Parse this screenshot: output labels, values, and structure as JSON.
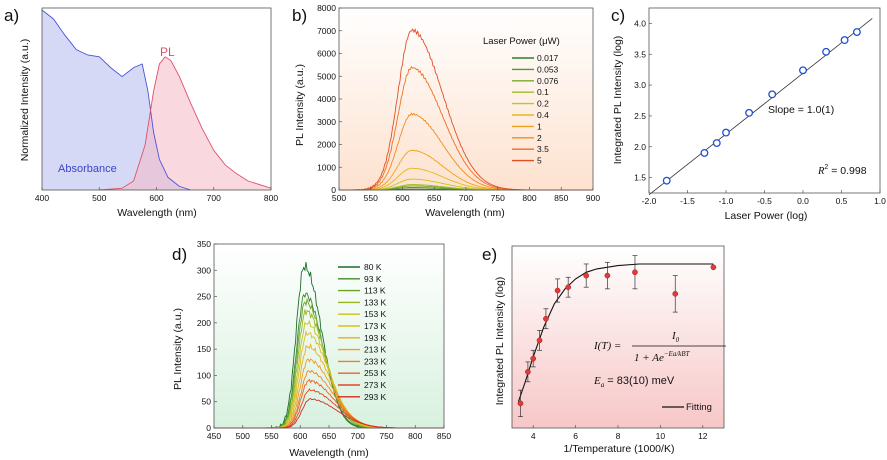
{
  "colors": {
    "absorbance": "#4a55d8",
    "pl_a": "#e0506a",
    "panel_b_series": [
      "#2e7d32",
      "#4f9a2f",
      "#78a82a",
      "#9fbc24",
      "#c8c31e",
      "#e3b81f",
      "#f0a21f",
      "#f38a22",
      "#ef6e26",
      "#e24e28"
    ],
    "panel_d_series": [
      "#1b6e2a",
      "#3d8b2a",
      "#6aa326",
      "#98b620",
      "#c5c21c",
      "#dcbd1e",
      "#ecae1f",
      "#f39a21",
      "#f18023",
      "#e96326",
      "#de4628",
      "#d42a2a"
    ],
    "marker_c": "#1f4fd6",
    "marker_e": "#e23a3a"
  },
  "chart_data": [
    {
      "panel": "a)",
      "type": "area",
      "xlabel": "Wavelength (nm)",
      "ylabel": "Normalized Intensity (a.u.)",
      "xlim": [
        400,
        800
      ],
      "xticks": [
        "400",
        "500",
        "600",
        "700",
        "800"
      ],
      "series": [
        {
          "name": "Absorbance",
          "x": [
            400,
            420,
            440,
            460,
            480,
            500,
            520,
            540,
            560,
            575,
            585,
            595,
            605,
            620,
            640,
            660
          ],
          "y": [
            1.0,
            0.95,
            0.86,
            0.78,
            0.75,
            0.74,
            0.68,
            0.63,
            0.68,
            0.7,
            0.55,
            0.32,
            0.17,
            0.07,
            0.02,
            0.0
          ]
        },
        {
          "name": "PL",
          "x": [
            500,
            540,
            560,
            580,
            595,
            605,
            615,
            625,
            640,
            660,
            680,
            700,
            720,
            740,
            760,
            780,
            800
          ],
          "y": [
            0.0,
            0.01,
            0.05,
            0.25,
            0.55,
            0.7,
            0.74,
            0.72,
            0.63,
            0.48,
            0.34,
            0.22,
            0.14,
            0.09,
            0.05,
            0.03,
            0.01
          ]
        }
      ]
    },
    {
      "panel": "b)",
      "type": "line",
      "xlabel": "Wavelength (nm)",
      "ylabel": "PL Intensity (a.u.)",
      "xlim": [
        500,
        900
      ],
      "ylim": [
        0,
        8000
      ],
      "xticks": [
        "500",
        "550",
        "600",
        "650",
        "700",
        "750",
        "800",
        "850",
        "900"
      ],
      "yticks": [
        "0",
        "1000",
        "2000",
        "3000",
        "4000",
        "5000",
        "6000",
        "7000",
        "8000"
      ],
      "legend_title": "Laser Power (μW)",
      "peak_nm": 615,
      "series": [
        {
          "name": "0.017",
          "peak": 40
        },
        {
          "name": "0.053",
          "peak": 110
        },
        {
          "name": "0.076",
          "peak": 180
        },
        {
          "name": "0.1",
          "peak": 240
        },
        {
          "name": "0.2",
          "peak": 480
        },
        {
          "name": "0.4",
          "peak": 960
        },
        {
          "name": "1",
          "peak": 1750
        },
        {
          "name": "2",
          "peak": 3350
        },
        {
          "name": "3.5",
          "peak": 5400
        },
        {
          "name": "5",
          "peak": 7050
        }
      ]
    },
    {
      "panel": "c)",
      "type": "scatter",
      "xlabel": "Laser Power (log)",
      "ylabel": "Integrated PL Intensity (log)",
      "xlim": [
        -2.0,
        1.0
      ],
      "ylim": [
        1.25,
        4.25
      ],
      "xticks": [
        "-2.0",
        "-1.5",
        "-1.0",
        "-0.5",
        "0.0",
        "0.5",
        "1.0"
      ],
      "yticks": [
        "1.5",
        "2.0",
        "2.5",
        "3.0",
        "3.5",
        "4.0"
      ],
      "x": [
        -1.77,
        -1.28,
        -1.12,
        -1.0,
        -0.7,
        -0.4,
        0.0,
        0.3,
        0.54,
        0.7
      ],
      "y": [
        1.45,
        1.9,
        2.06,
        2.23,
        2.55,
        2.85,
        3.24,
        3.54,
        3.73,
        3.86
      ],
      "fit": {
        "x": [
          -2.0,
          0.9
        ],
        "y": [
          1.22,
          4.08
        ]
      },
      "annotations": {
        "slope": "Slope = 1.0(1)",
        "r2_lhs": "R",
        "r2_sup": "2",
        "r2_rhs": " = 0.998"
      }
    },
    {
      "panel": "d)",
      "type": "line",
      "xlabel": "Wavelength (nm)",
      "ylabel": "PL Intensity (a.u.)",
      "xlim": [
        450,
        850
      ],
      "ylim": [
        0,
        350
      ],
      "xticks": [
        "450",
        "500",
        "550",
        "600",
        "650",
        "700",
        "750",
        "800",
        "850"
      ],
      "yticks": [
        "0",
        "50",
        "100",
        "150",
        "200",
        "250",
        "300",
        "350"
      ],
      "series": [
        {
          "name": "80 K",
          "peak": 307,
          "center": 607
        },
        {
          "name": "93 K",
          "peak": 255,
          "center": 608
        },
        {
          "name": "113 K",
          "peak": 240,
          "center": 609
        },
        {
          "name": "133 K",
          "peak": 222,
          "center": 610
        },
        {
          "name": "153 K",
          "peak": 200,
          "center": 611
        },
        {
          "name": "173 K",
          "peak": 180,
          "center": 612
        },
        {
          "name": "193 K",
          "peak": 155,
          "center": 613
        },
        {
          "name": "213 K",
          "peak": 130,
          "center": 614
        },
        {
          "name": "233 K",
          "peak": 108,
          "center": 615
        },
        {
          "name": "253 K",
          "peak": 90,
          "center": 615
        },
        {
          "name": "273 K",
          "peak": 72,
          "center": 616
        },
        {
          "name": "293 K",
          "peak": 55,
          "center": 617
        }
      ]
    },
    {
      "panel": "e)",
      "type": "scatter",
      "xlabel": "1/Temperature (1000/K)",
      "ylabel": "Integrated PL Intensity (log)",
      "xlim": [
        3,
        13
      ],
      "ylim": [
        0,
        1
      ],
      "xticks": [
        "4",
        "6",
        "8",
        "10",
        "12"
      ],
      "x": [
        3.4,
        3.75,
        4.0,
        4.3,
        4.6,
        5.15,
        5.65,
        6.5,
        7.5,
        8.8,
        10.7,
        12.5
      ],
      "y": [
        0.1,
        0.29,
        0.37,
        0.48,
        0.61,
        0.78,
        0.8,
        0.87,
        0.87,
        0.89,
        0.76,
        0.92
      ],
      "yerr": [
        0.08,
        0.06,
        0.05,
        0.06,
        0.06,
        0.07,
        0.06,
        0.07,
        0.08,
        0.1,
        0.11,
        0.0
      ],
      "fit": {
        "x": [
          3.3,
          3.6,
          4.0,
          4.5,
          5.0,
          5.5,
          6.0,
          6.5,
          7.0,
          8.0,
          9.0,
          10.0,
          11.0,
          12.5
        ],
        "y": [
          0.11,
          0.22,
          0.38,
          0.56,
          0.7,
          0.79,
          0.85,
          0.89,
          0.91,
          0.93,
          0.94,
          0.94,
          0.94,
          0.94
        ]
      },
      "legend": "Fitting",
      "equation": {
        "lhs": "I(T) = ",
        "num": "I",
        "num_sub": "0",
        "den": "1 + Ae",
        "den_exp": "−Ea/kBT"
      },
      "ea": {
        "lhs": "E",
        "sub": "a",
        "rhs": " = 83(10) meV"
      }
    }
  ]
}
